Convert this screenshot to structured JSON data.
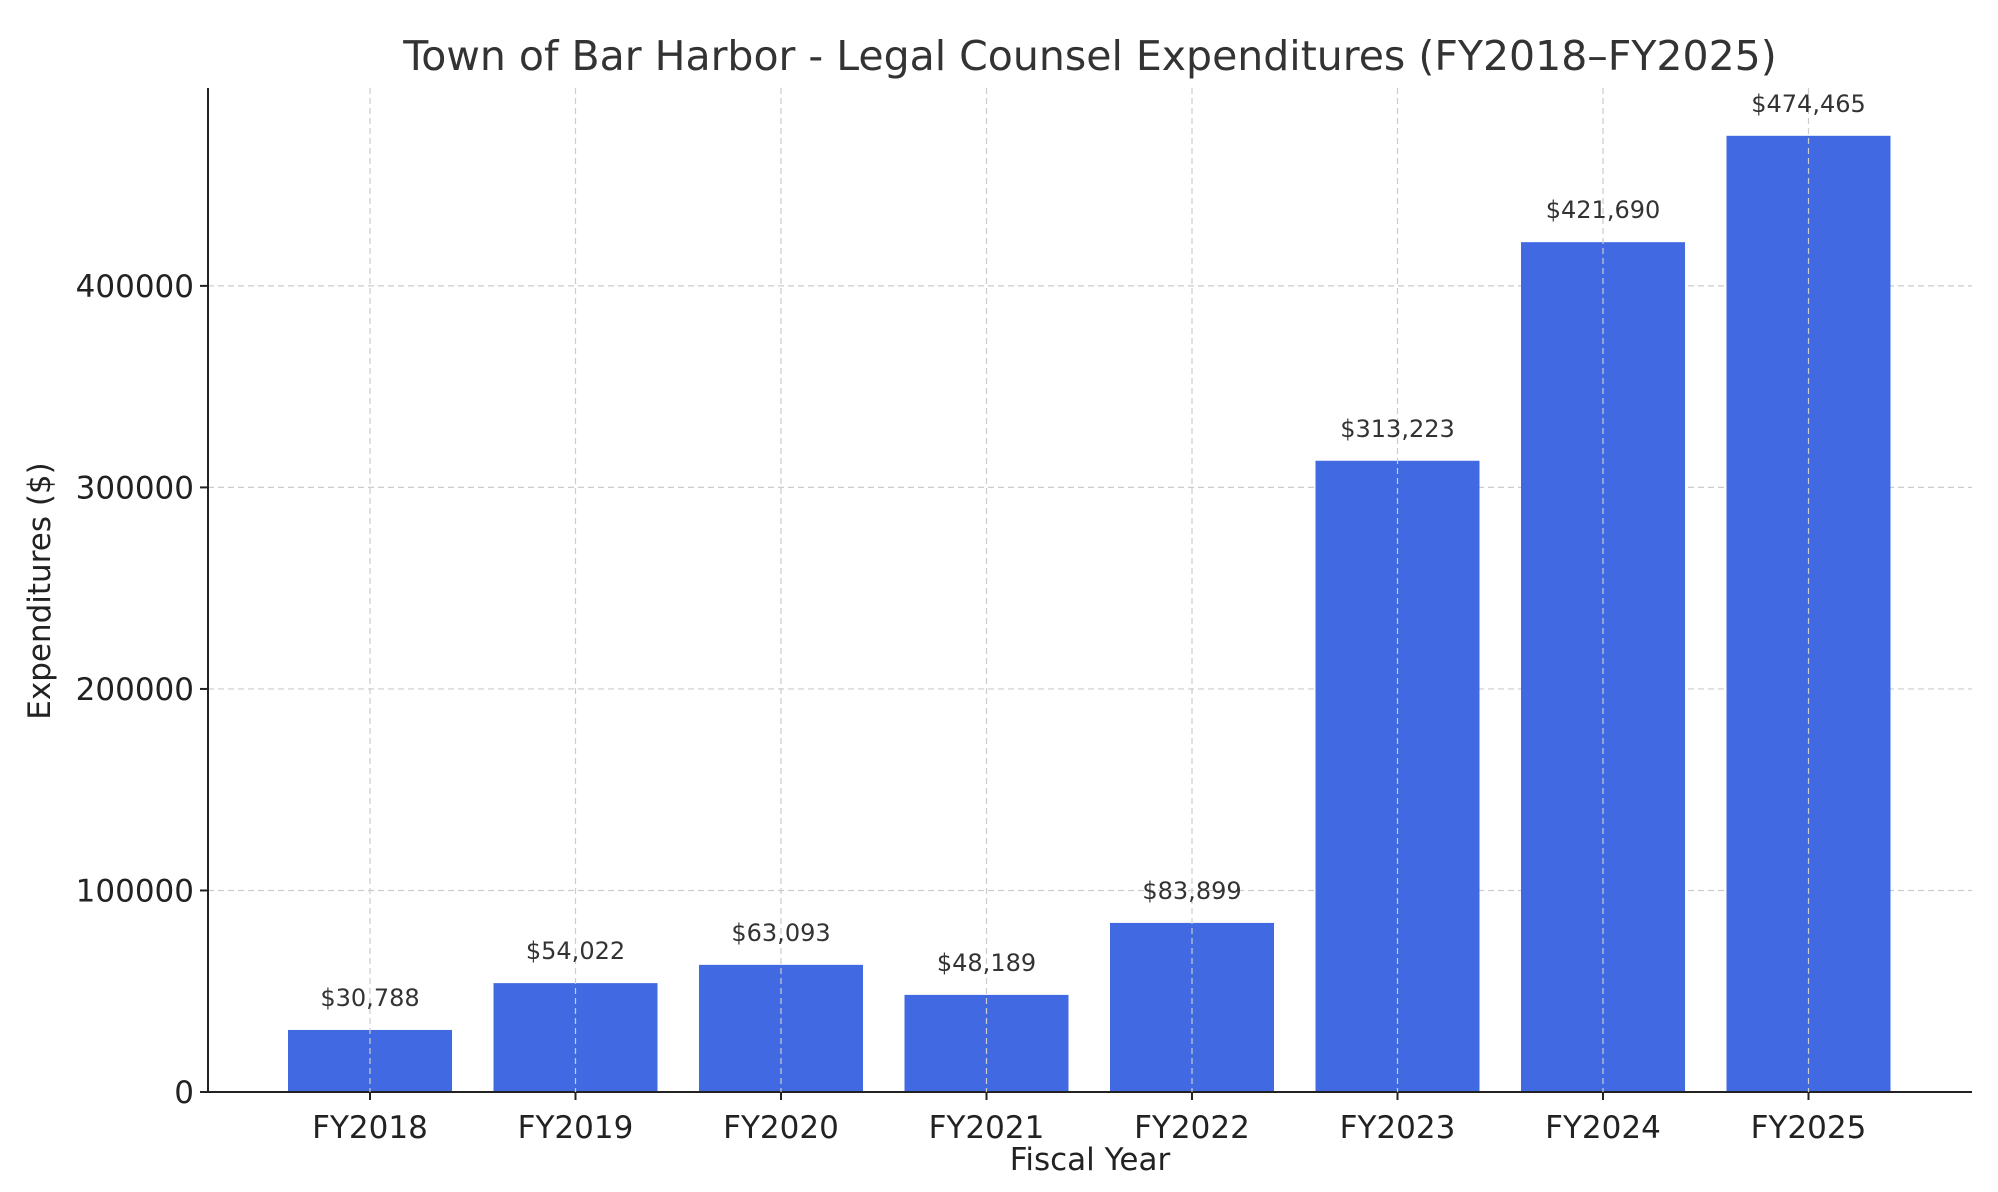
{
  "chart_data": {
    "type": "bar",
    "title": "Town of Bar Harbor - Legal Counsel Expenditures (FY2018–FY2025)",
    "xlabel": "Fiscal Year",
    "ylabel": "Expenditures ($)",
    "categories": [
      "FY2018",
      "FY2019",
      "FY2020",
      "FY2021",
      "FY2022",
      "FY2023",
      "FY2024",
      "FY2025"
    ],
    "values": [
      30788,
      54022,
      63093,
      48189,
      83899,
      313223,
      421690,
      474465
    ],
    "data_labels": [
      "$30,788",
      "$54,022",
      "$63,093",
      "$48,189",
      "$83,899",
      "$313,223",
      "$421,690",
      "$474,465"
    ],
    "yticks": [
      0,
      100000,
      200000,
      300000,
      400000
    ],
    "ytick_labels": [
      "0",
      "100000",
      "200000",
      "300000",
      "400000"
    ],
    "ylim": [
      0,
      498188
    ],
    "grid": true,
    "bar_color": "#4169E1"
  }
}
